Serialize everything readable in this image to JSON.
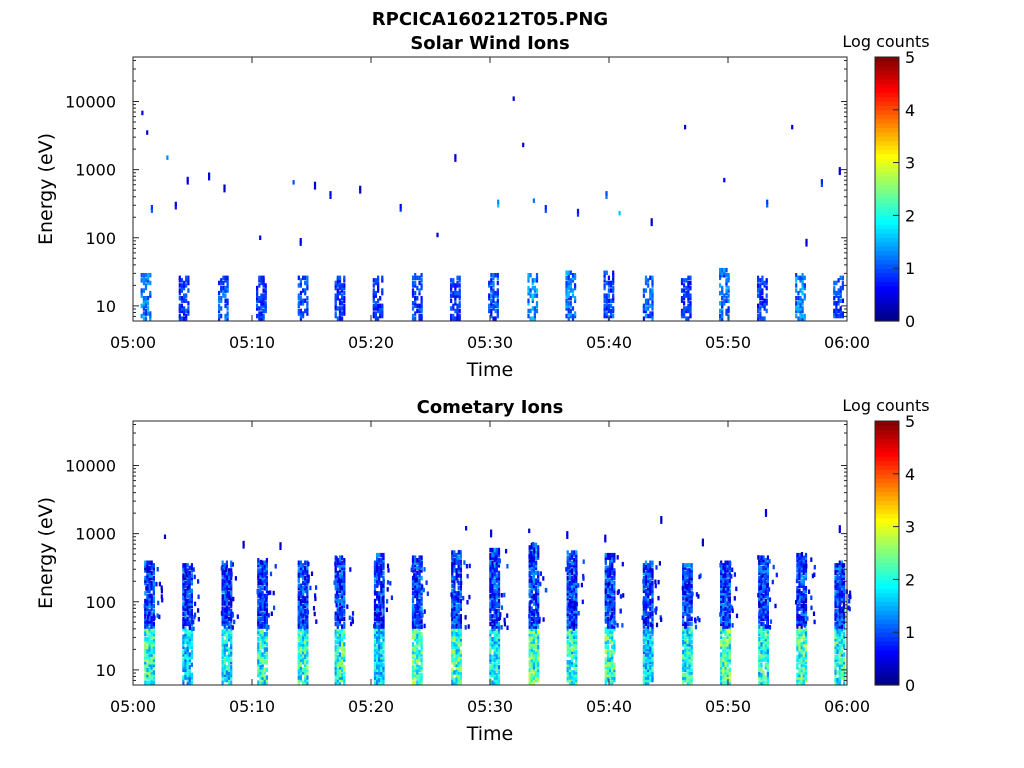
{
  "figure_title": "RPCICA160212T05.PNG",
  "chart_data": [
    {
      "type": "heatmap",
      "title": "Solar Wind Ions",
      "xlabel": "Time",
      "ylabel": "Energy (eV)",
      "x_ticks": [
        "05:00",
        "05:10",
        "05:20",
        "05:30",
        "05:40",
        "05:50",
        "06:00"
      ],
      "x_range_minutes": [
        0,
        60
      ],
      "y_scale": "log",
      "ylim": [
        6,
        45000
      ],
      "y_ticks": [
        "10",
        "100",
        "1000",
        "10000"
      ],
      "colorbar": {
        "label": "Log counts",
        "range": [
          0,
          5
        ],
        "ticks": [
          "0",
          "1",
          "2",
          "3",
          "4",
          "5"
        ],
        "colormap": "jet"
      },
      "sweeps": [
        {
          "t": 1.0,
          "e_max": 30,
          "level": 1.4
        },
        {
          "t": 4.2,
          "e_max": 26,
          "level": 1.0
        },
        {
          "t": 7.5,
          "e_max": 26,
          "level": 1.3
        },
        {
          "t": 10.7,
          "e_max": 26,
          "level": 1.0
        },
        {
          "t": 14.2,
          "e_max": 28,
          "level": 1.1
        },
        {
          "t": 17.3,
          "e_max": 26,
          "level": 1.0
        },
        {
          "t": 20.5,
          "e_max": 26,
          "level": 1.0
        },
        {
          "t": 23.8,
          "e_max": 30,
          "level": 1.1
        },
        {
          "t": 27.0,
          "e_max": 28,
          "level": 1.0
        },
        {
          "t": 30.2,
          "e_max": 30,
          "level": 1.2
        },
        {
          "t": 33.5,
          "e_max": 30,
          "level": 1.5
        },
        {
          "t": 36.7,
          "e_max": 32,
          "level": 1.4
        },
        {
          "t": 39.9,
          "e_max": 32,
          "level": 1.1
        },
        {
          "t": 43.2,
          "e_max": 28,
          "level": 1.3
        },
        {
          "t": 46.4,
          "e_max": 28,
          "level": 1.0
        },
        {
          "t": 49.6,
          "e_max": 34,
          "level": 1.3
        },
        {
          "t": 52.8,
          "e_max": 28,
          "level": 1.0
        },
        {
          "t": 56.0,
          "e_max": 30,
          "level": 1.4
        },
        {
          "t": 59.2,
          "e_max": 28,
          "level": 1.1
        }
      ],
      "scattered_counts": [
        {
          "t": 0.7,
          "e": 6800,
          "level": 0.6
        },
        {
          "t": 1.1,
          "e": 3500,
          "level": 0.4
        },
        {
          "t": 1.5,
          "e": 250,
          "level": 1.1
        },
        {
          "t": 2.8,
          "e": 1500,
          "level": 1.3
        },
        {
          "t": 3.5,
          "e": 280,
          "level": 0.7
        },
        {
          "t": 4.5,
          "e": 650,
          "level": 0.5
        },
        {
          "t": 6.3,
          "e": 750,
          "level": 0.6
        },
        {
          "t": 7.6,
          "e": 500,
          "level": 0.4
        },
        {
          "t": 10.6,
          "e": 100,
          "level": 0.5
        },
        {
          "t": 13.4,
          "e": 650,
          "level": 1.0
        },
        {
          "t": 14.0,
          "e": 82,
          "level": 0.6
        },
        {
          "t": 15.2,
          "e": 550,
          "level": 0.5
        },
        {
          "t": 16.5,
          "e": 400,
          "level": 0.7
        },
        {
          "t": 19.0,
          "e": 480,
          "level": 0.4
        },
        {
          "t": 22.4,
          "e": 260,
          "level": 0.8
        },
        {
          "t": 25.5,
          "e": 110,
          "level": 0.4
        },
        {
          "t": 27.0,
          "e": 1400,
          "level": 0.5
        },
        {
          "t": 30.6,
          "e": 300,
          "level": 1.6
        },
        {
          "t": 31.9,
          "e": 11000,
          "level": 0.5
        },
        {
          "t": 32.7,
          "e": 2300,
          "level": 0.4
        },
        {
          "t": 33.6,
          "e": 350,
          "level": 1.2
        },
        {
          "t": 34.6,
          "e": 250,
          "level": 1.0
        },
        {
          "t": 37.3,
          "e": 220,
          "level": 0.9
        },
        {
          "t": 39.7,
          "e": 400,
          "level": 1.2
        },
        {
          "t": 40.8,
          "e": 230,
          "level": 1.6
        },
        {
          "t": 43.5,
          "e": 160,
          "level": 0.5
        },
        {
          "t": 46.3,
          "e": 4200,
          "level": 0.4
        },
        {
          "t": 49.6,
          "e": 700,
          "level": 0.6
        },
        {
          "t": 53.2,
          "e": 300,
          "level": 1.1
        },
        {
          "t": 55.3,
          "e": 4200,
          "level": 0.5
        },
        {
          "t": 56.5,
          "e": 80,
          "level": 0.5
        },
        {
          "t": 57.8,
          "e": 600,
          "level": 1.0
        },
        {
          "t": 59.3,
          "e": 900,
          "level": 0.4
        }
      ]
    },
    {
      "type": "heatmap",
      "title": "Cometary Ions",
      "xlabel": "Time",
      "ylabel": "Energy (eV)",
      "x_ticks": [
        "05:00",
        "05:10",
        "05:20",
        "05:30",
        "05:40",
        "05:50",
        "06:00"
      ],
      "x_range_minutes": [
        0,
        60
      ],
      "y_scale": "log",
      "ylim": [
        6,
        45000
      ],
      "y_ticks": [
        "10",
        "100",
        "1000",
        "10000"
      ],
      "colorbar": {
        "label": "Log counts",
        "range": [
          0,
          5
        ],
        "ticks": [
          "0",
          "1",
          "2",
          "3",
          "4",
          "5"
        ],
        "colormap": "jet"
      },
      "sweeps": [
        {
          "t": 1.3,
          "e_max": 400,
          "level": 2.4
        },
        {
          "t": 4.5,
          "e_max": 350,
          "level": 1.9
        },
        {
          "t": 7.8,
          "e_max": 380,
          "level": 2.1
        },
        {
          "t": 10.8,
          "e_max": 420,
          "level": 2.3
        },
        {
          "t": 14.2,
          "e_max": 400,
          "level": 2.4
        },
        {
          "t": 17.3,
          "e_max": 450,
          "level": 2.4
        },
        {
          "t": 20.6,
          "e_max": 500,
          "level": 2.0
        },
        {
          "t": 23.8,
          "e_max": 450,
          "level": 2.5
        },
        {
          "t": 27.1,
          "e_max": 550,
          "level": 2.4
        },
        {
          "t": 30.3,
          "e_max": 600,
          "level": 2.1
        },
        {
          "t": 33.6,
          "e_max": 700,
          "level": 2.6
        },
        {
          "t": 36.8,
          "e_max": 550,
          "level": 2.4
        },
        {
          "t": 40.0,
          "e_max": 500,
          "level": 2.5
        },
        {
          "t": 43.2,
          "e_max": 400,
          "level": 2.0
        },
        {
          "t": 46.5,
          "e_max": 350,
          "level": 2.3
        },
        {
          "t": 49.7,
          "e_max": 400,
          "level": 2.6
        },
        {
          "t": 52.9,
          "e_max": 450,
          "level": 2.3
        },
        {
          "t": 56.1,
          "e_max": 500,
          "level": 2.5
        },
        {
          "t": 59.3,
          "e_max": 400,
          "level": 2.3
        }
      ],
      "scattered_counts": [
        {
          "t": 2.6,
          "e": 900,
          "level": 0.4
        },
        {
          "t": 9.2,
          "e": 650,
          "level": 0.4
        },
        {
          "t": 12.3,
          "e": 620,
          "level": 0.4
        },
        {
          "t": 27.9,
          "e": 1200,
          "level": 0.5
        },
        {
          "t": 30.0,
          "e": 950,
          "level": 0.5
        },
        {
          "t": 33.2,
          "e": 1100,
          "level": 0.5
        },
        {
          "t": 36.4,
          "e": 900,
          "level": 0.5
        },
        {
          "t": 39.6,
          "e": 800,
          "level": 0.5
        },
        {
          "t": 44.3,
          "e": 1500,
          "level": 0.4
        },
        {
          "t": 47.8,
          "e": 700,
          "level": 0.4
        },
        {
          "t": 53.1,
          "e": 1900,
          "level": 0.5
        },
        {
          "t": 59.3,
          "e": 1100,
          "level": 0.5
        }
      ]
    }
  ]
}
